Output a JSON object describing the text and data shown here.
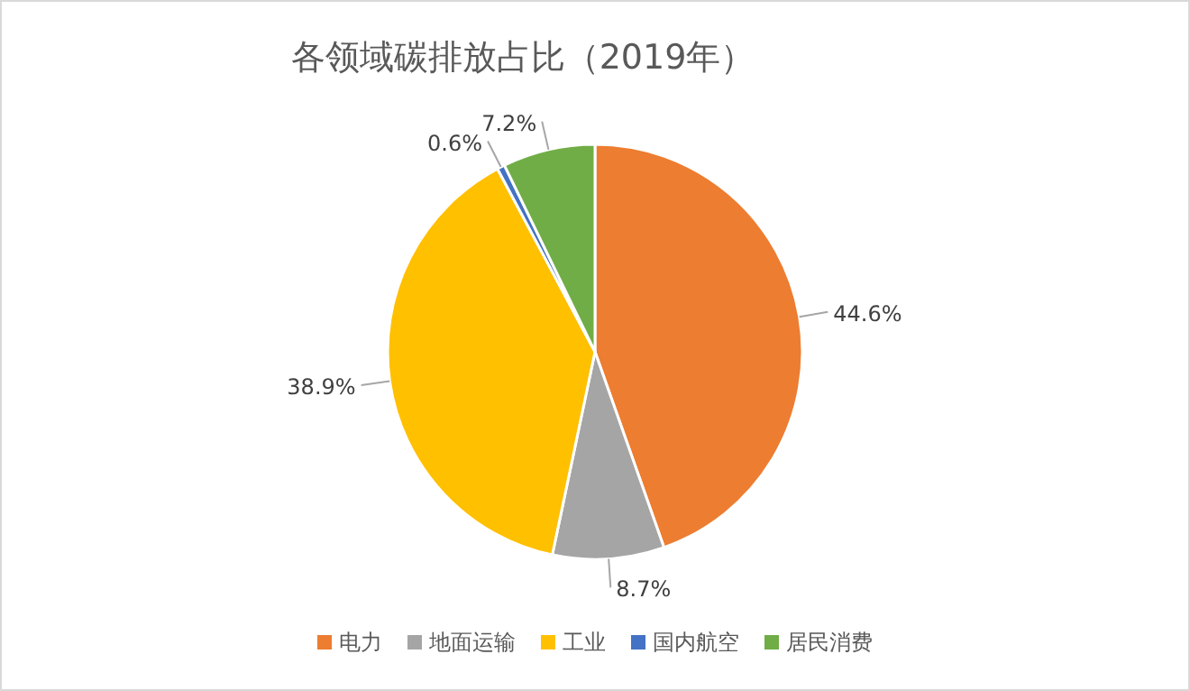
{
  "chart_data": {
    "type": "pie",
    "title": "各领域碳排放占比（2019年）",
    "categories": [
      "电力",
      "地面运输",
      "工业",
      "国内航空",
      "居民消费"
    ],
    "values": [
      44.6,
      8.7,
      38.9,
      0.6,
      7.2
    ],
    "colors": [
      "#ed7d31",
      "#a5a5a5",
      "#ffc000",
      "#4472c4",
      "#70ad47"
    ],
    "value_labels": [
      "44.6%",
      "8.7%",
      "38.9%",
      "0.6%",
      "7.2%"
    ],
    "legend": "bottom"
  }
}
